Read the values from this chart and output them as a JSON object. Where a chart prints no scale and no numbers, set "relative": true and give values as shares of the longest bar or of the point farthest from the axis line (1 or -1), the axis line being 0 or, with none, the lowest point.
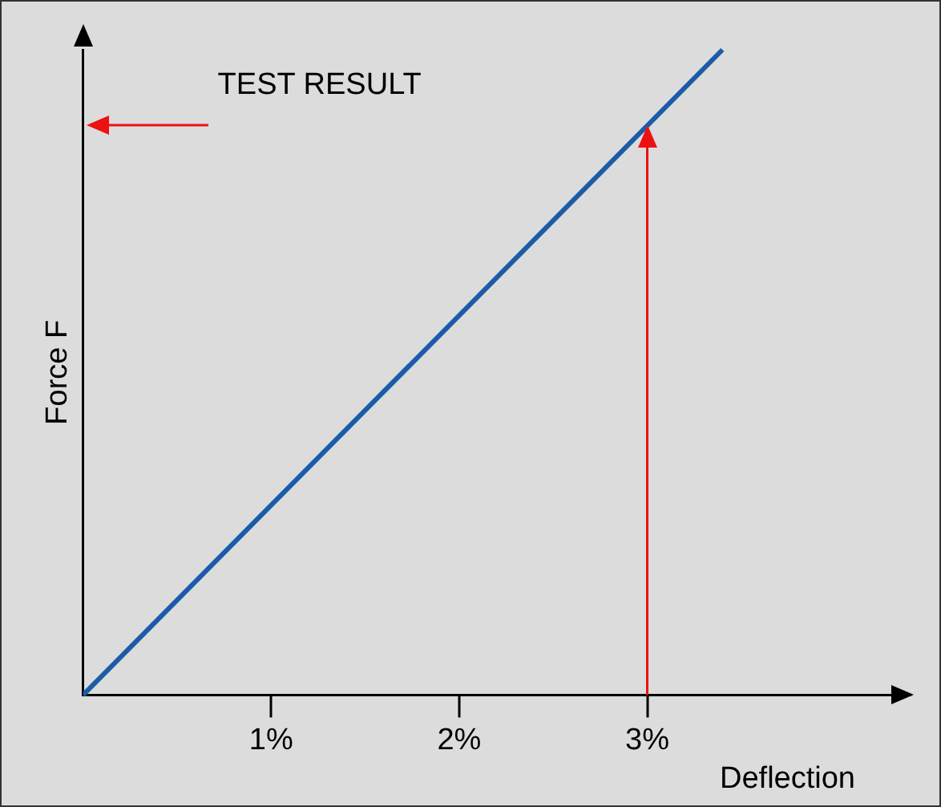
{
  "chart_data": {
    "type": "line",
    "relative": true,
    "xlabel": "Deflection",
    "ylabel": "Force F",
    "x": [
      0,
      3.4
    ],
    "series": [
      {
        "color": "#1a5ca8",
        "values": [
          0,
          1
        ]
      }
    ],
    "xlim": [
      0,
      4.4
    ],
    "xticks": [
      {
        "value": 1,
        "label": "1%"
      },
      {
        "value": 2,
        "label": "2%"
      },
      {
        "value": 3,
        "label": "3%"
      }
    ],
    "ref_lines": [
      {
        "axis": "x",
        "value": 3,
        "color": "#ee1111"
      }
    ],
    "annotations": [
      "TEST RESULT"
    ],
    "grid": false,
    "legend": false,
    "marker": "none",
    "line_style": "solid"
  }
}
